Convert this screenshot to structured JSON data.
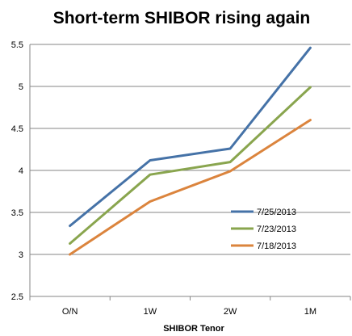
{
  "chart_data": {
    "type": "line",
    "title": "Short-term SHIBOR rising again",
    "xlabel": "SHIBOR Tenor",
    "ylabel": "",
    "categories": [
      "O/N",
      "1W",
      "2W",
      "1M"
    ],
    "ylim": [
      2.5,
      5.5
    ],
    "yticks": [
      "2.5",
      "3",
      "3.5",
      "4",
      "4.5",
      "5",
      "5.5"
    ],
    "grid": true,
    "legend_position": "right",
    "series": [
      {
        "name": "7/25/2013",
        "color": "#4572a7",
        "values": [
          3.34,
          4.12,
          4.26,
          5.46
        ]
      },
      {
        "name": "7/23/2013",
        "color": "#89a54e",
        "values": [
          3.13,
          3.95,
          4.1,
          4.99
        ]
      },
      {
        "name": "7/18/2013",
        "color": "#db843d",
        "values": [
          3.0,
          3.63,
          3.99,
          4.6
        ]
      }
    ]
  }
}
